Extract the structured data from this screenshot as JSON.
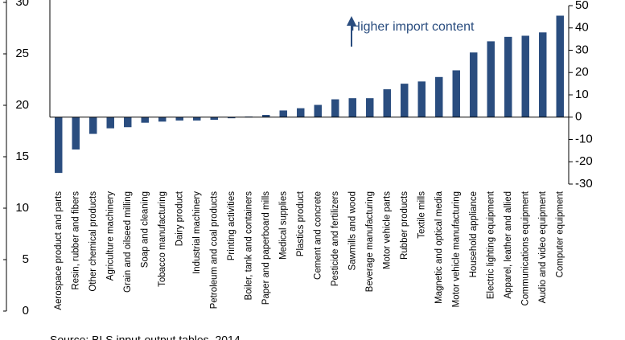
{
  "chart_data": {
    "type": "bar",
    "categories": [
      "Aerospace product and parts",
      "Resin, rubber and fibers",
      "Other chemical products",
      "Agriculture machinery",
      "Grain and oilseed milling",
      "Soap and cleaning",
      "Tobacco manufacturing",
      "Dairy product",
      "Industrial machinery",
      "Petroleum and coal products",
      "Printing activities",
      "Boiler, tank and containers",
      "Paper and paperboard mills",
      "Medical supplies",
      "Plastics product",
      "Cement and concrete",
      "Pesticide and fertilizers",
      "Sawmills and wood",
      "Beverage manufacturing",
      "Motor vehicle parts",
      "Rubber products",
      "Textile mills",
      "Magnetic and optical media",
      "Motor vehicle manufacturing",
      "Household appliance",
      "Electric lighting equipment",
      "Apparel, leather and allied",
      "Communications equipment",
      "Audio and video equipment",
      "Computer equipment"
    ],
    "series": [
      {
        "color": "#2a4d7f",
        "axis": "y2",
        "values": [
          -25,
          -14.5,
          -7.5,
          -5,
          -4.5,
          -2.5,
          -2,
          -1.5,
          -1.5,
          -1.2,
          -0.5,
          0.3,
          1,
          3,
          4,
          5.5,
          8,
          8.5,
          8.5,
          12.5,
          15,
          16,
          18,
          21,
          29,
          34,
          36,
          36.5,
          38,
          45.5
        ]
      }
    ],
    "ylim": [
      0,
      30
    ],
    "yticks": [
      0,
      5,
      10,
      15,
      20,
      25,
      30
    ],
    "y2lim": [
      -30,
      50
    ],
    "y2ticks": [
      -30,
      -20,
      -10,
      0,
      10,
      20,
      30,
      40,
      50
    ],
    "annotation": "Higher import content",
    "source": "Source: BLS input-output tables, 2014"
  }
}
